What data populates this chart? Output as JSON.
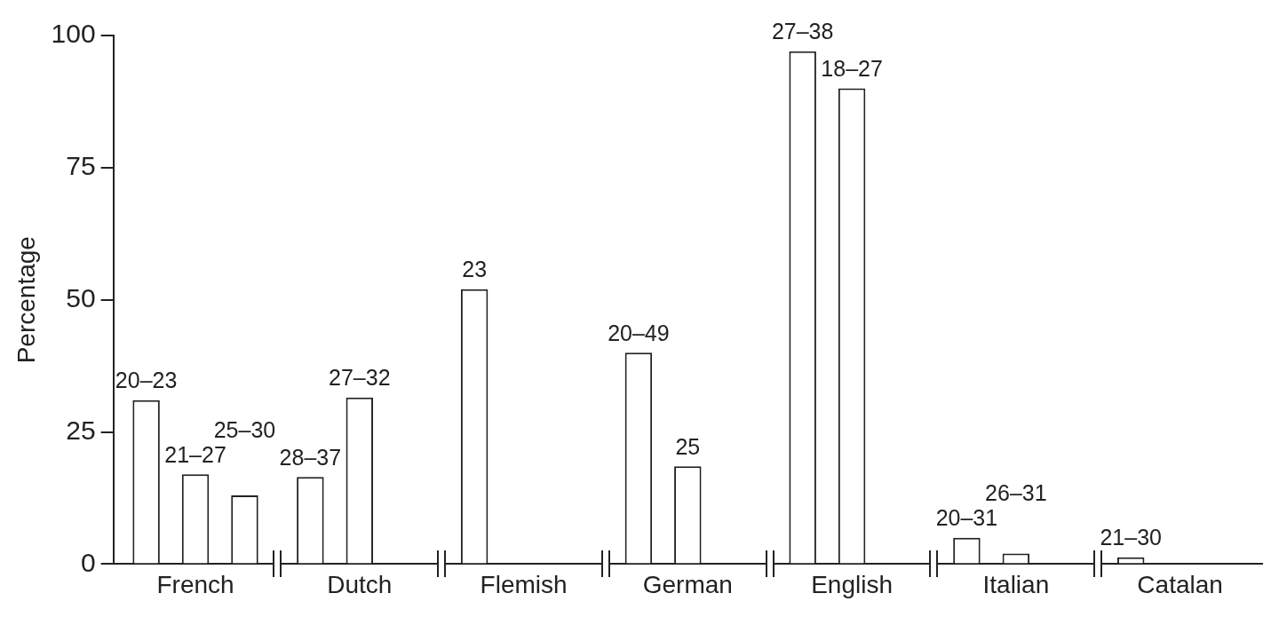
{
  "chart_data": {
    "type": "bar",
    "ylabel": "Percentage",
    "categories": [
      "French",
      "Dutch",
      "Flemish",
      "German",
      "English",
      "Italian",
      "Catalan"
    ],
    "series": [
      {
        "color": "#ffffff",
        "values": [
          31,
          16.5,
          52,
          40,
          97,
          5,
          1.3
        ]
      },
      {
        "color": "#ffffff",
        "values": [
          17,
          31.5,
          null,
          18.5,
          90,
          2,
          null
        ]
      },
      {
        "color": "#ffffff",
        "values": [
          13,
          null,
          null,
          null,
          null,
          null,
          null
        ]
      }
    ],
    "ylim": [
      0,
      100
    ],
    "yticks": [
      0,
      25,
      50,
      75,
      100
    ],
    "grid": false,
    "legend": false,
    "annotations": [
      "20–23",
      "21–27",
      "25–30",
      "28–37",
      "27–32",
      "23",
      "20–49",
      "25",
      "27–38",
      "18–27",
      "20–31",
      "26–31",
      "21–30"
    ]
  }
}
